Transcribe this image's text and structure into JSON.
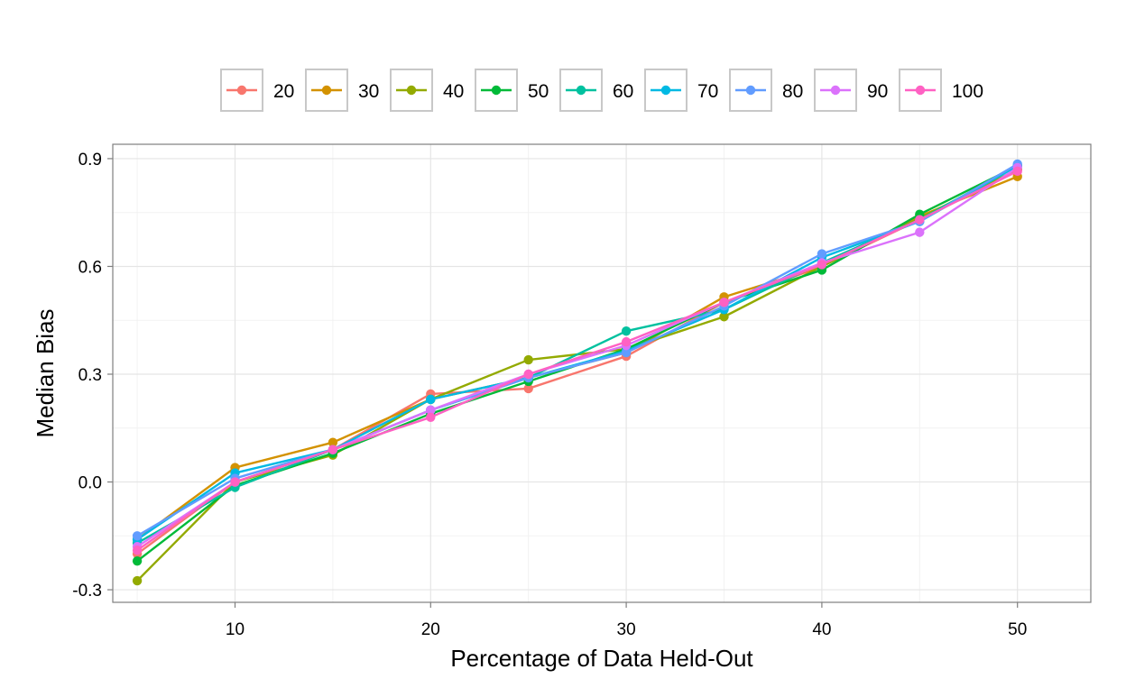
{
  "chart_data": {
    "type": "line",
    "xlabel": "Percentage of Data Held-Out",
    "ylabel": "Median Bias",
    "xlim": [
      3.75,
      53.75
    ],
    "ylim": [
      -0.335,
      0.94
    ],
    "x_ticks": [
      10,
      20,
      30,
      40,
      50
    ],
    "x_tick_labels": [
      "10",
      "20",
      "30",
      "40",
      "50"
    ],
    "y_ticks": [
      -0.3,
      0.0,
      0.3,
      0.6,
      0.9
    ],
    "y_tick_labels": [
      "-0.3",
      "0.0",
      "0.3",
      "0.6",
      "0.9"
    ],
    "grid": true,
    "legend_position": "top",
    "x": [
      5,
      10,
      15,
      20,
      25,
      30,
      35,
      40,
      45,
      50
    ],
    "series": [
      {
        "name": "20",
        "color": "#F8766D",
        "values": [
          -0.2,
          0.0,
          0.09,
          0.245,
          0.26,
          0.35,
          0.5,
          0.6,
          0.73,
          0.87
        ]
      },
      {
        "name": "30",
        "color": "#D39200",
        "values": [
          -0.16,
          0.04,
          0.11,
          0.23,
          0.29,
          0.36,
          0.515,
          0.6,
          0.74,
          0.85
        ]
      },
      {
        "name": "40",
        "color": "#93AA00",
        "values": [
          -0.275,
          0.0,
          0.075,
          0.23,
          0.34,
          0.37,
          0.46,
          0.6,
          0.735,
          0.87
        ]
      },
      {
        "name": "50",
        "color": "#00BA38",
        "values": [
          -0.22,
          -0.01,
          0.08,
          0.19,
          0.28,
          0.37,
          0.5,
          0.59,
          0.745,
          0.88
        ]
      },
      {
        "name": "60",
        "color": "#00C19F",
        "values": [
          -0.17,
          -0.015,
          0.09,
          0.2,
          0.29,
          0.42,
          0.48,
          0.61,
          0.73,
          0.88
        ]
      },
      {
        "name": "70",
        "color": "#00B9E3",
        "values": [
          -0.16,
          0.025,
          0.09,
          0.23,
          0.29,
          0.365,
          0.48,
          0.625,
          0.725,
          0.88
        ]
      },
      {
        "name": "80",
        "color": "#619CFF",
        "values": [
          -0.15,
          0.01,
          0.09,
          0.2,
          0.29,
          0.36,
          0.49,
          0.635,
          0.725,
          0.885
        ]
      },
      {
        "name": "90",
        "color": "#DB72FB",
        "values": [
          -0.18,
          0.0,
          0.09,
          0.2,
          0.3,
          0.38,
          0.5,
          0.61,
          0.695,
          0.875
        ]
      },
      {
        "name": "100",
        "color": "#FF61C3",
        "values": [
          -0.19,
          0.0,
          0.09,
          0.18,
          0.3,
          0.39,
          0.5,
          0.605,
          0.73,
          0.865
        ]
      }
    ]
  }
}
